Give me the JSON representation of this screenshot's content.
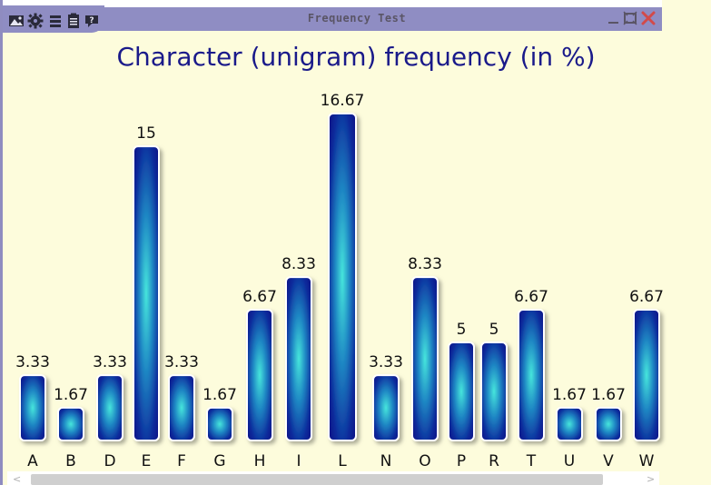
{
  "window": {
    "title": "Frequency Test"
  },
  "toolbar": {
    "icons": [
      "image-icon",
      "gear-icon",
      "list-icon",
      "clipboard-icon",
      "help-icon"
    ]
  },
  "window_controls": [
    "minimize-icon",
    "maximize-icon",
    "close-icon"
  ],
  "colors": {
    "title_color": "#1a1a8a",
    "bar_dark": "#0a0a88",
    "bar_light": "#3fd8d8",
    "background": "#fdfcdc",
    "titlebar": "#8f8dc3"
  },
  "chart_data": {
    "type": "bar",
    "title": "Character (unigram) frequency (in %)",
    "xlabel": "",
    "ylabel": "",
    "ylim": [
      0,
      16.67
    ],
    "categories": [
      "A",
      "B",
      "D",
      "E",
      "F",
      "G",
      "H",
      "I",
      "L",
      "N",
      "O",
      "P",
      "R",
      "T",
      "U",
      "V",
      "W"
    ],
    "values": [
      3.33,
      1.67,
      3.33,
      15,
      3.33,
      1.67,
      6.67,
      8.33,
      16.67,
      3.33,
      8.33,
      5,
      5,
      6.67,
      1.67,
      1.67,
      6.67
    ],
    "value_labels": [
      "3.33",
      "1.67",
      "3.33",
      "15",
      "3.33",
      "1.67",
      "6.67",
      "8.33",
      "16.67",
      "3.33",
      "8.33",
      "5",
      "5",
      "6.67",
      "1.67",
      "1.67",
      "6.67"
    ],
    "grid": false,
    "legend": "none"
  }
}
